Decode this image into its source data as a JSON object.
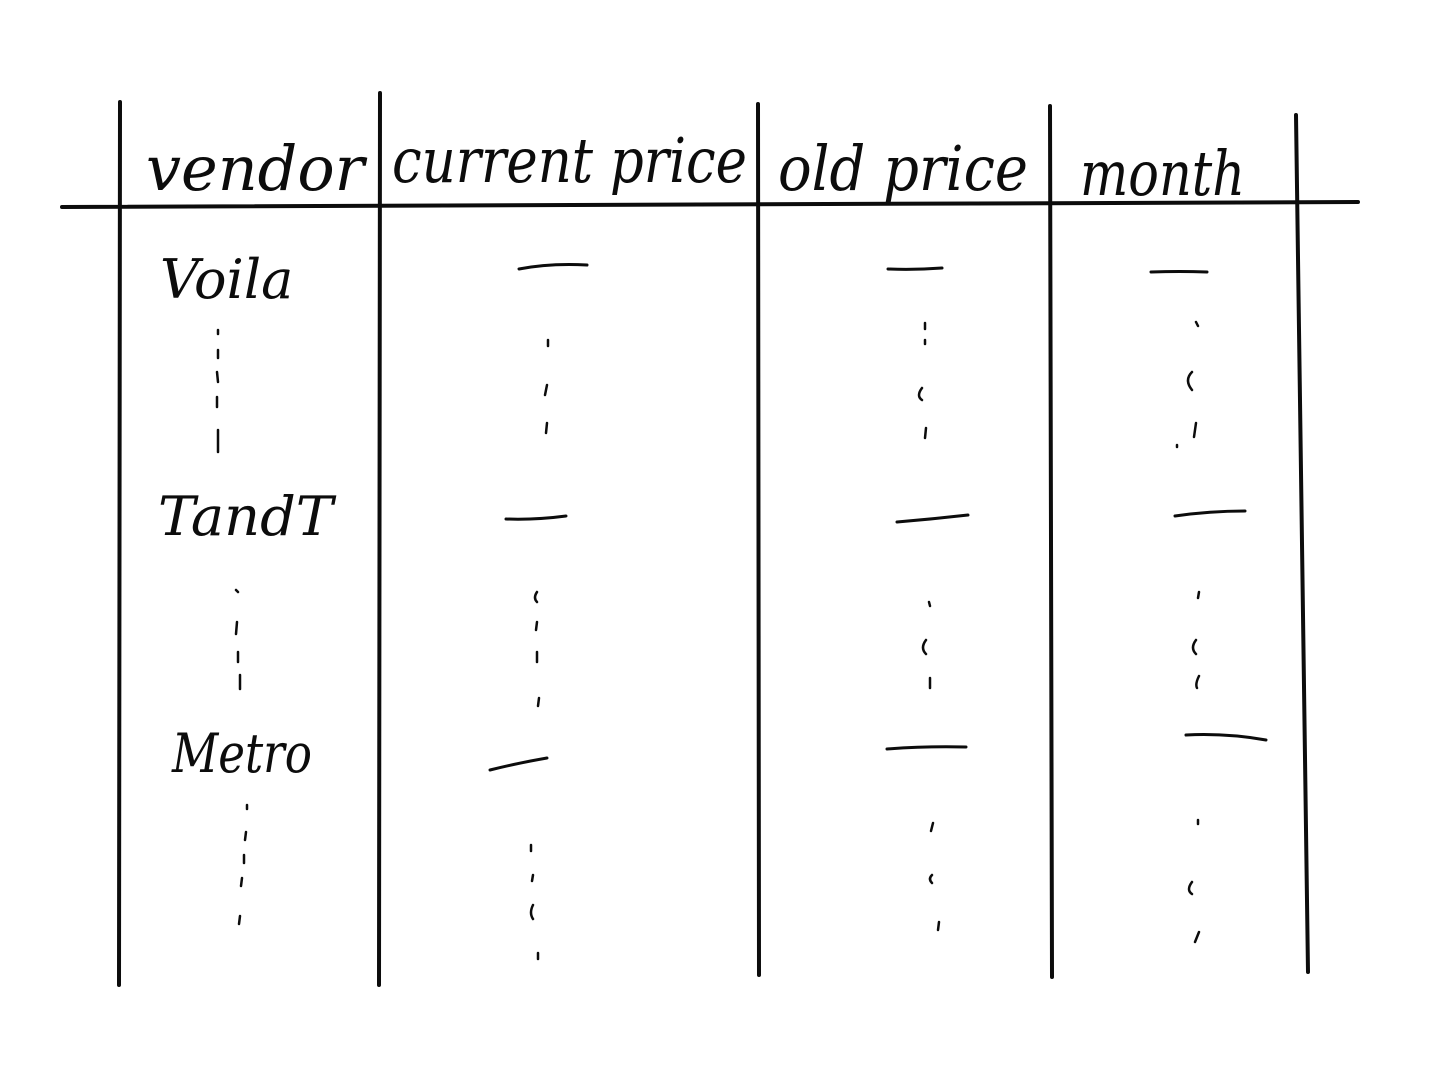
{
  "table": {
    "headers": [
      "vendor",
      "current price",
      "old price",
      "month"
    ],
    "vendors": [
      "Voila",
      "TandT",
      "Metro"
    ]
  }
}
